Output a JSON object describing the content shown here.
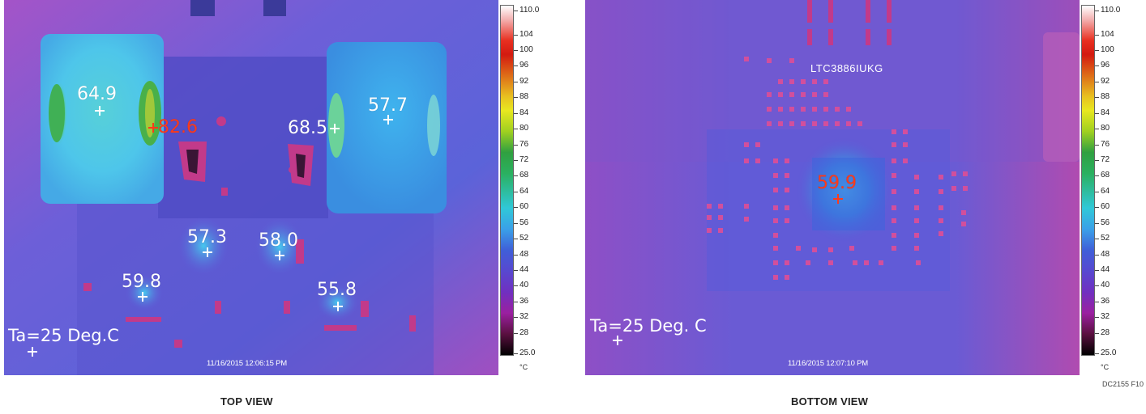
{
  "top_view": {
    "caption": "TOP VIEW",
    "ambient_label": "Ta=25 Deg.C",
    "timestamp": "11/16/2015 12:06:15 PM",
    "readouts": [
      {
        "value": "64.9",
        "hot": false
      },
      {
        "value": "82.6",
        "hot": true
      },
      {
        "value": "68.5",
        "hot": false
      },
      {
        "value": "57.7",
        "hot": false
      },
      {
        "value": "57.3",
        "hot": false
      },
      {
        "value": "58.0",
        "hot": false
      },
      {
        "value": "59.8",
        "hot": false
      },
      {
        "value": "55.8",
        "hot": false
      }
    ]
  },
  "bottom_view": {
    "caption": "BOTTOM VIEW",
    "ambient_label": "Ta=25 Deg. C",
    "timestamp": "11/16/2015 12:07:10 PM",
    "chip_label": "LTC3886IUKG",
    "readouts": [
      {
        "value": "59.9",
        "hot": true
      }
    ]
  },
  "color_scale": {
    "max_label": "110.0",
    "min_label": "25.0",
    "unit": "°C",
    "ticks": [
      "104",
      "100",
      "96",
      "92",
      "88",
      "84",
      "80",
      "76",
      "72",
      "68",
      "64",
      "60",
      "56",
      "52",
      "48",
      "44",
      "40",
      "36",
      "32",
      "28"
    ]
  },
  "figure_id": "DC2155 F10",
  "colors": {
    "background": "#6f5ed6",
    "copper_hot": "#c23a8a",
    "inductor": "#4fc6e8",
    "hot_readout": "#ff3a1a"
  }
}
